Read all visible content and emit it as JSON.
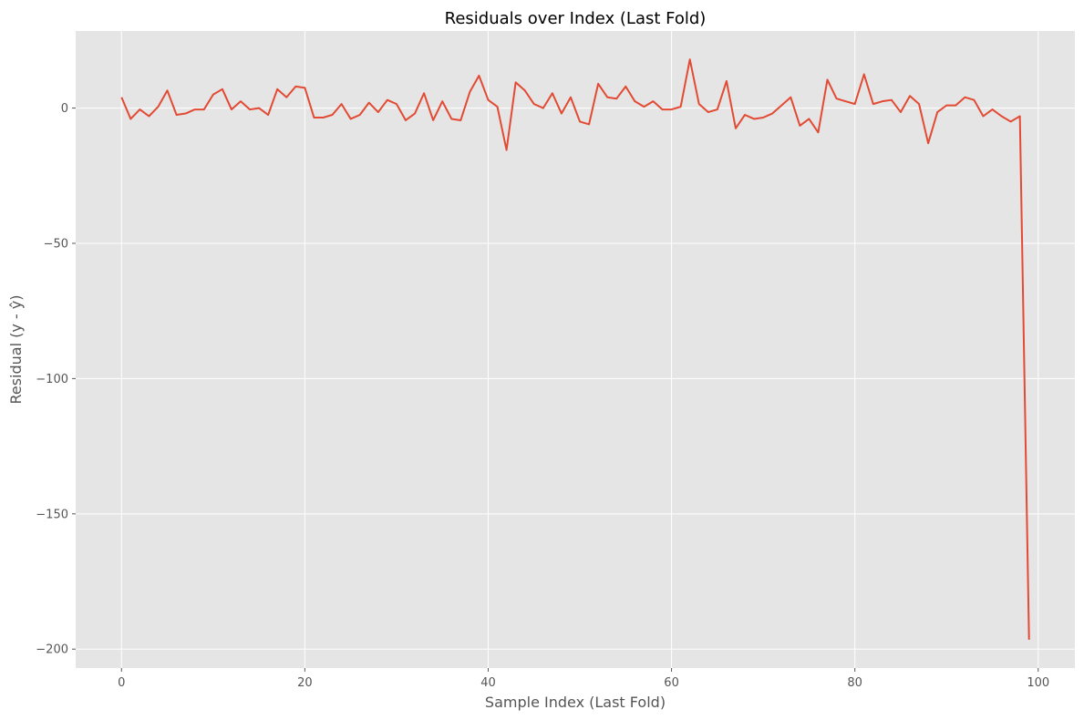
{
  "chart_data": {
    "type": "line",
    "title": "Residuals over Index (Last Fold)",
    "xlabel": "Sample Index (Last Fold)",
    "ylabel": "Residual (y - ŷ)",
    "xlim": [
      -5,
      104
    ],
    "ylim": [
      -207,
      28.5
    ],
    "xticks": [
      0,
      20,
      40,
      60,
      80,
      100
    ],
    "xtick_labels": [
      "0",
      "20",
      "40",
      "60",
      "80",
      "100"
    ],
    "yticks": [
      0,
      -50,
      -100,
      -150,
      -200
    ],
    "ytick_labels": [
      "0",
      "−50",
      "−100",
      "−150",
      "−200"
    ],
    "grid": true,
    "background": "#e5e5e5",
    "grid_color": "#ffffff",
    "line_color": "#e24a33",
    "series": [
      {
        "x": [
          0,
          1,
          2,
          3,
          4,
          5,
          6,
          7,
          8,
          9,
          10,
          11,
          12,
          13,
          14,
          15,
          16,
          17,
          18,
          19,
          20,
          21,
          22,
          23,
          24,
          25,
          26,
          27,
          28,
          29,
          30,
          31,
          32,
          33,
          34,
          35,
          36,
          37,
          38,
          39,
          40,
          41,
          42,
          43,
          44,
          45,
          46,
          47,
          48,
          49,
          50,
          51,
          52,
          53,
          54,
          55,
          56,
          57,
          58,
          59,
          60,
          61,
          62,
          63,
          64,
          65,
          66,
          67,
          68,
          69,
          70,
          71,
          72,
          73,
          74,
          75,
          76,
          77,
          78,
          79,
          80,
          81,
          82,
          83,
          84,
          85,
          86,
          87,
          88,
          89,
          90,
          91,
          92,
          93,
          94,
          95,
          96,
          97,
          98,
          99
        ],
        "values": [
          4,
          -4,
          -0.5,
          -3,
          0.5,
          6.5,
          -2.5,
          -2,
          -0.5,
          -0.5,
          5,
          7,
          -0.5,
          2.5,
          -0.5,
          0,
          -2.5,
          7,
          4,
          8,
          7.5,
          -3.5,
          -3.5,
          -2.5,
          1.5,
          -4,
          -2.5,
          2,
          -1.5,
          3,
          1.5,
          -4.5,
          -2,
          5.5,
          -4.5,
          2.5,
          -4,
          -4.5,
          6,
          12,
          3,
          0.5,
          -15.5,
          9.5,
          6.5,
          1.5,
          0,
          5.5,
          -2,
          4,
          -5,
          -6,
          9,
          4,
          3.5,
          8,
          2.5,
          0.5,
          2.5,
          -0.5,
          -0.5,
          0.5,
          18,
          1.5,
          -1.5,
          -0.5,
          10,
          -7.5,
          -2.5,
          -4,
          -3.5,
          -2,
          1,
          4,
          -6.5,
          -4,
          -9,
          10.5,
          3.5,
          2.5,
          1.5,
          12.5,
          1.5,
          2.5,
          3,
          -1.5,
          4.5,
          1.5,
          -13,
          -1.5,
          1,
          1,
          4,
          3,
          -3,
          -0.5,
          -3,
          -5,
          -3,
          -196.5
        ]
      }
    ]
  }
}
